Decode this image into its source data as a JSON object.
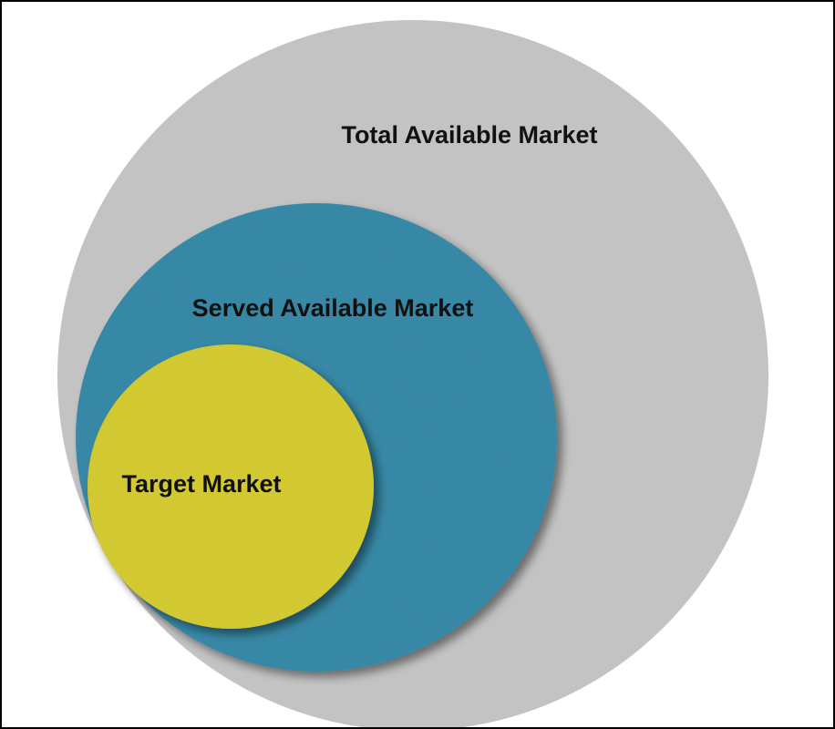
{
  "nodes": [
    {
      "label": "Total Available Market"
    },
    {
      "label": "Served Available Market"
    },
    {
      "label": "Target Market"
    }
  ]
}
